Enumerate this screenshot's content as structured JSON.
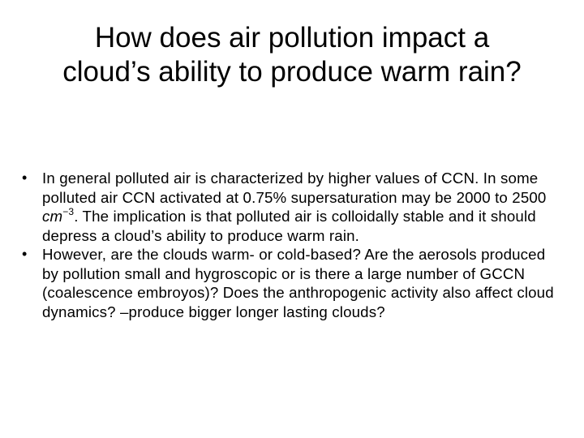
{
  "slide": {
    "title": "How does air pollution impact a cloud’s ability to produce warm rain?",
    "bullets": [
      {
        "marker": "•",
        "text_before": "In general polluted air is characterized by higher values of CCN. In some polluted air CCN activated at 0.75% supersaturation may be 2000 to 2500 ",
        "unit": "cm",
        "unit_exponent": "−3",
        "text_after": ". The implication is that polluted air is colloidally stable and it should depress a cloud’s ability to produce warm rain."
      },
      {
        "marker": "•",
        "text": "However, are the clouds warm- or cold-based? Are the aerosols produced by pollution small and hygroscopic or is there a large number of GCCN (coalescence embroyos)? Does the anthropogenic activity also affect cloud dynamics? –produce bigger longer lasting clouds?"
      }
    ]
  }
}
